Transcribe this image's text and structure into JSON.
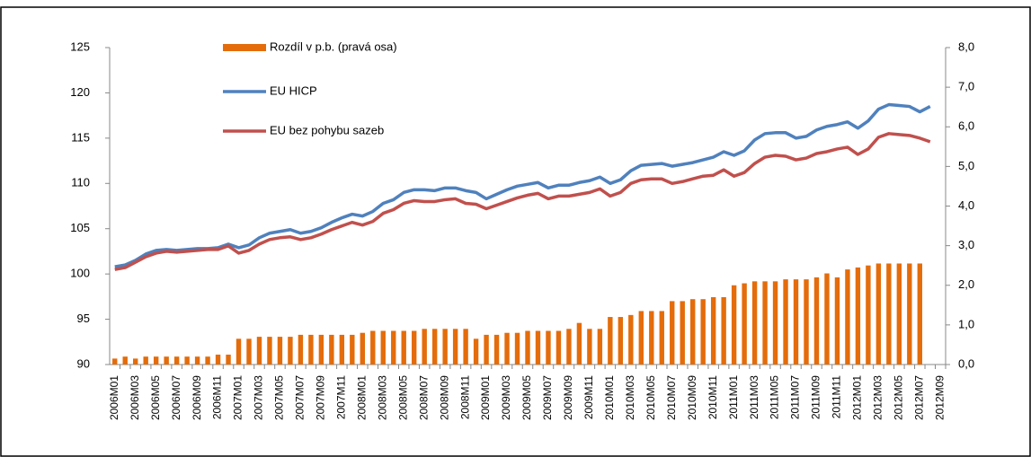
{
  "chart_data": {
    "type": "bar-line",
    "categories": [
      "2006M01",
      null,
      "2006M03",
      null,
      "2006M05",
      null,
      "2006M07",
      null,
      "2006M09",
      null,
      "2006M11",
      null,
      "2007M01",
      null,
      "2007M03",
      null,
      "2007M05",
      null,
      "2007M07",
      null,
      "2007M09",
      null,
      "2007M11",
      null,
      "2008M01",
      null,
      "2008M03",
      null,
      "2008M05",
      null,
      "2008M07",
      null,
      "2008M09",
      null,
      "2008M11",
      null,
      "2009M01",
      null,
      "2009M03",
      null,
      "2009M05",
      null,
      "2009M07",
      null,
      "2009M09",
      null,
      "2009M11",
      null,
      "2010M01",
      null,
      "2010M03",
      null,
      "2010M05",
      null,
      "2010M07",
      null,
      "2010M09",
      null,
      "2010M11",
      null,
      "2011M01",
      null,
      "2011M03",
      null,
      "2011M05",
      null,
      "2011M07",
      null,
      "2011M09",
      null,
      "2011M11",
      null,
      "2012M01",
      null,
      "2012M03",
      null,
      "2012M05",
      null,
      "2012M07",
      null,
      "2012M09"
    ],
    "series": [
      {
        "name": "Rozdíl v p.b. (pravá osa)",
        "type": "bar",
        "axis": "y2",
        "color": "#e46c0a",
        "values": [
          0.15,
          0.2,
          0.15,
          0.2,
          0.2,
          0.2,
          0.2,
          0.2,
          0.2,
          0.2,
          0.25,
          0.25,
          0.65,
          0.65,
          0.7,
          0.7,
          0.7,
          0.7,
          0.75,
          0.75,
          0.75,
          0.75,
          0.75,
          0.75,
          0.8,
          0.85,
          0.85,
          0.85,
          0.85,
          0.85,
          0.9,
          0.9,
          0.9,
          0.9,
          0.9,
          0.65,
          0.75,
          0.75,
          0.8,
          0.8,
          0.85,
          0.85,
          0.85,
          0.85,
          0.9,
          1.05,
          0.9,
          0.9,
          1.2,
          1.2,
          1.25,
          1.35,
          1.35,
          1.35,
          1.6,
          1.6,
          1.65,
          1.65,
          1.7,
          1.7,
          2.0,
          2.05,
          2.1,
          2.1,
          2.1,
          2.15,
          2.15,
          2.15,
          2.2,
          2.3,
          2.2,
          2.4,
          2.45,
          2.5,
          2.55,
          2.55,
          2.55,
          2.55,
          2.55,
          null,
          null
        ]
      },
      {
        "name": "EU HICP",
        "type": "line",
        "color": "#4f81bd",
        "values": [
          100.8,
          101.0,
          101.5,
          102.2,
          102.6,
          102.7,
          102.6,
          102.7,
          102.8,
          102.8,
          102.9,
          103.3,
          102.9,
          103.2,
          104.0,
          104.5,
          104.7,
          104.9,
          104.5,
          104.7,
          105.1,
          105.7,
          106.2,
          106.6,
          106.4,
          106.9,
          107.8,
          108.2,
          109.0,
          109.3,
          109.3,
          109.2,
          109.5,
          109.5,
          109.2,
          109.0,
          108.3,
          108.8,
          109.3,
          109.7,
          109.9,
          110.1,
          109.5,
          109.8,
          109.8,
          110.1,
          110.3,
          110.7,
          110.0,
          110.4,
          111.4,
          112.0,
          112.1,
          112.2,
          111.9,
          112.1,
          112.3,
          112.6,
          112.9,
          113.5,
          113.1,
          113.6,
          114.8,
          115.5,
          115.6,
          115.6,
          115.0,
          115.2,
          115.9,
          116.3,
          116.5,
          116.8,
          116.1,
          116.9,
          118.2,
          118.7,
          118.6,
          118.5,
          117.9,
          118.5,
          null
        ]
      },
      {
        "name": "EU bez pohybu sazeb",
        "type": "line",
        "color": "#c0504d",
        "values": [
          100.5,
          100.7,
          101.3,
          101.9,
          102.3,
          102.5,
          102.4,
          102.5,
          102.6,
          102.7,
          102.7,
          103.1,
          102.3,
          102.6,
          103.3,
          103.8,
          104.0,
          104.1,
          103.8,
          104.0,
          104.4,
          104.9,
          105.3,
          105.7,
          105.4,
          105.8,
          106.7,
          107.1,
          107.8,
          108.1,
          108.0,
          108.0,
          108.2,
          108.3,
          107.8,
          107.7,
          107.2,
          107.6,
          108.0,
          108.4,
          108.7,
          108.9,
          108.3,
          108.6,
          108.6,
          108.8,
          109.0,
          109.4,
          108.6,
          109.0,
          110.0,
          110.4,
          110.5,
          110.5,
          110.0,
          110.2,
          110.5,
          110.8,
          110.9,
          111.5,
          110.8,
          111.2,
          112.2,
          112.9,
          113.1,
          113.0,
          112.6,
          112.8,
          113.3,
          113.5,
          113.8,
          114.0,
          113.2,
          113.8,
          115.1,
          115.5,
          115.4,
          115.3,
          115.0,
          114.6,
          null
        ]
      }
    ],
    "ylim": [
      90,
      125
    ],
    "yticks": [
      90,
      95,
      100,
      105,
      110,
      115,
      120,
      125
    ],
    "y2lim": [
      0,
      8
    ],
    "y2ticks": [
      {
        "value": 0,
        "label": "0,0"
      },
      {
        "value": 1,
        "label": "1,0"
      },
      {
        "value": 2,
        "label": "2,0"
      },
      {
        "value": 3,
        "label": "3,0"
      },
      {
        "value": 4,
        "label": "4,0"
      },
      {
        "value": 5,
        "label": "5,0"
      },
      {
        "value": 6,
        "label": "6,0"
      },
      {
        "value": 7,
        "label": "7,0"
      },
      {
        "value": 8,
        "label": "8,0"
      }
    ],
    "grid": false
  }
}
